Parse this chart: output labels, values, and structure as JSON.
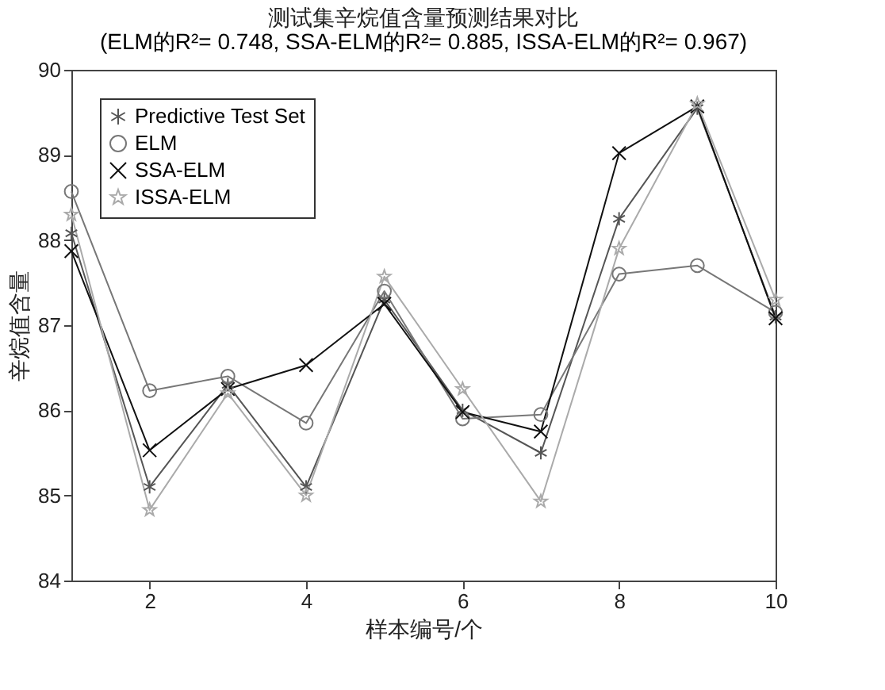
{
  "chart_data": {
    "type": "line",
    "title": "测试集辛烷值含量预测结果对比",
    "subtitle": "(ELM的R²= 0.748, SSA-ELM的R²= 0.885, ISSA-ELM的R²= 0.967)",
    "xlabel": "样本编号/个",
    "ylabel": "辛烷值含量",
    "x": [
      1,
      2,
      3,
      4,
      5,
      6,
      7,
      8,
      9,
      10
    ],
    "series": [
      {
        "name": "Predictive Test Set",
        "color": "#555555",
        "marker": "cross",
        "values": [
          88.08,
          85.1,
          86.3,
          85.1,
          87.3,
          86.0,
          85.5,
          88.25,
          89.55,
          87.1
        ]
      },
      {
        "name": "ELM",
        "color": "#777777",
        "marker": "circle",
        "values": [
          88.57,
          86.23,
          86.4,
          85.85,
          87.4,
          85.9,
          85.95,
          87.6,
          87.7,
          87.15
        ]
      },
      {
        "name": "SSA-ELM",
        "color": "#111111",
        "marker": "cross",
        "values": [
          87.87,
          85.53,
          86.25,
          86.53,
          87.25,
          85.98,
          85.75,
          89.02,
          89.57,
          87.08
        ]
      },
      {
        "name": "ISSA-ELM",
        "color": "#aaaaaa",
        "marker": "star",
        "values": [
          88.3,
          84.83,
          86.2,
          85.0,
          87.57,
          86.25,
          84.93,
          87.9,
          89.6,
          87.3
        ]
      }
    ],
    "xlim": [
      1,
      10
    ],
    "xticks": [
      2,
      4,
      6,
      8,
      10
    ],
    "ylim": [
      84,
      90
    ],
    "yticks": [
      84,
      85,
      86,
      87,
      88,
      89,
      90
    ],
    "grid": false,
    "legend": "top left",
    "line_style": "solid"
  }
}
